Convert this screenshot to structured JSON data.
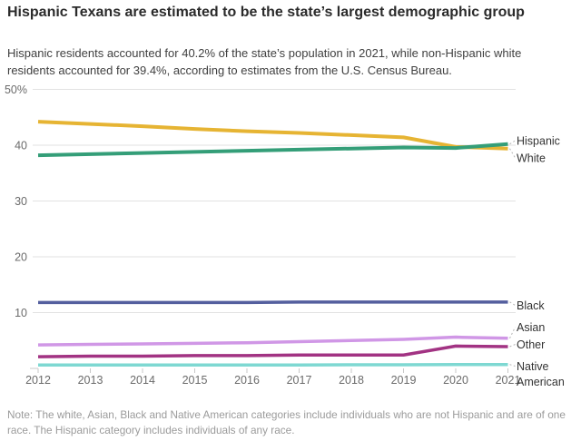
{
  "header": {
    "title": "Hispanic Texans are estimated to be the state’s largest demographic group",
    "subtitle": "Hispanic residents accounted for 40.2% of the state’s population in 2021, while non-Hispanic white residents accounted for 39.4%, according to estimates from the U.S. Census Bureau."
  },
  "note": "Note: The white, Asian, Black and Native American categories include individuals who are not Hispanic and are of one race. The Hispanic category includes individuals of any race.",
  "chart_data": {
    "type": "line",
    "title": "Hispanic Texans are estimated to be the state’s largest demographic group",
    "x": [
      2012,
      2013,
      2014,
      2015,
      2016,
      2017,
      2018,
      2019,
      2020,
      2021
    ],
    "series": [
      {
        "name": "White",
        "color": "#e6b433",
        "values": [
          44.2,
          43.8,
          43.4,
          42.9,
          42.5,
          42.2,
          41.8,
          41.4,
          39.7,
          39.4
        ]
      },
      {
        "name": "Hispanic",
        "color": "#349e78",
        "values": [
          38.2,
          38.4,
          38.6,
          38.8,
          39.0,
          39.2,
          39.4,
          39.6,
          39.5,
          40.2
        ]
      },
      {
        "name": "Black",
        "color": "#545f9e",
        "values": [
          11.8,
          11.8,
          11.8,
          11.8,
          11.8,
          11.9,
          11.9,
          11.9,
          11.9,
          11.9
        ]
      },
      {
        "name": "Asian",
        "color": "#d097e6",
        "values": [
          4.2,
          4.3,
          4.4,
          4.5,
          4.6,
          4.8,
          5.0,
          5.2,
          5.6,
          5.4
        ]
      },
      {
        "name": "Other",
        "color": "#a23383",
        "values": [
          2.1,
          2.2,
          2.2,
          2.3,
          2.3,
          2.4,
          2.4,
          2.4,
          4.0,
          3.9
        ]
      },
      {
        "name": "Native American",
        "color": "#7ed8d2",
        "values": [
          0.6,
          0.6,
          0.6,
          0.6,
          0.6,
          0.6,
          0.65,
          0.65,
          0.7,
          0.7
        ]
      }
    ],
    "yticks": [
      {
        "value": 50,
        "label": "50%"
      },
      {
        "value": 40,
        "label": "40"
      },
      {
        "value": 30,
        "label": "30"
      },
      {
        "value": 20,
        "label": "20"
      },
      {
        "value": 10,
        "label": "10"
      }
    ],
    "ylim": [
      0,
      50
    ],
    "xlabel": "",
    "ylabel": "",
    "grid": true,
    "legend_position": "direct-labels-right"
  }
}
